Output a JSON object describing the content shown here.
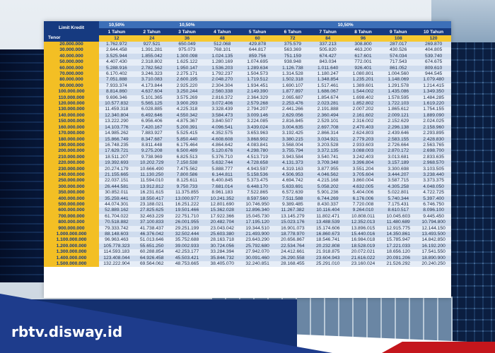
{
  "table": {
    "corner_label": "Limit Kredit",
    "tenor_label": "Tenor",
    "rate_groups": [
      {
        "label": "10,50%",
        "span": 1
      },
      {
        "label": "10,50%",
        "span": 3
      },
      {
        "label": "10,50%",
        "span": 6
      }
    ],
    "year_headers": [
      "1 Tahun",
      "2 Tahun",
      "3 Tahun",
      "4 Tahun",
      "5 Tahun",
      "6 Tahun",
      "7 Tahun",
      "8 Tahun",
      "9 Tahun",
      "10 Tahun"
    ],
    "month_headers": [
      "12",
      "24",
      "36",
      "48",
      "60",
      "72",
      "84",
      "96",
      "108",
      "120"
    ],
    "rows": [
      {
        "amount": "20.000.000",
        "values": [
          "1.762.972",
          "927.521",
          "650.049",
          "512.068",
          "429.878",
          "375.579",
          "337.213",
          "308.800",
          "287.017",
          "269.870"
        ]
      },
      {
        "amount": "30.000.000",
        "values": [
          "2.644.458",
          "1.391.281",
          "975.073",
          "768.101",
          "644.817",
          "563.369",
          "505.820",
          "463.200",
          "430.526",
          "404.805"
        ]
      },
      {
        "amount": "40.000.000",
        "values": [
          "3.525.944",
          "1.855.042",
          "1.300.098",
          "1.024.135",
          "859.756",
          "751.159",
          "674.427",
          "617.601",
          "574.034",
          "539.740"
        ]
      },
      {
        "amount": "50.000.000",
        "values": [
          "4.407.430",
          "2.318.802",
          "1.625.122",
          "1.280.169",
          "1.074.695",
          "938.948",
          "843.034",
          "772.001",
          "717.543",
          "674.675"
        ]
      },
      {
        "amount": "60.000.000",
        "values": [
          "5.288.916",
          "2.782.562",
          "1.950.147",
          "1.536.203",
          "1.289.634",
          "1.126.738",
          "1.011.640",
          "926.401",
          "861.052",
          "809.610"
        ]
      },
      {
        "amount": "70.000.000",
        "values": [
          "6.170.402",
          "3.246.323",
          "2.275.171",
          "1.792.237",
          "1.504.573",
          "1.314.528",
          "1.180.247",
          "1.080.801",
          "1.004.560",
          "944.545"
        ]
      },
      {
        "amount": "80.000.000",
        "values": [
          "7.051.888",
          "3.710.083",
          "2.600.195",
          "2.048.270",
          "1.719.512",
          "1.502.318",
          "1.348.854",
          "1.235.201",
          "1.148.069",
          "1.079.480"
        ]
      },
      {
        "amount": "90.000.000",
        "values": [
          "7.933.374",
          "4.173.844",
          "2.925.220",
          "2.304.304",
          "1.934.451",
          "1.690.107",
          "1.517.461",
          "1.389.601",
          "1.291.578",
          "1.214.415"
        ]
      },
      {
        "amount": "100.000.000",
        "values": [
          "8.814.860",
          "4.637.604",
          "3.250.244",
          "2.560.338",
          "2.149.390",
          "1.877.897",
          "1.686.067",
          "1.544.002",
          "1.435.086",
          "1.349.350"
        ]
      },
      {
        "amount": "110.000.000",
        "values": [
          "9.696.346",
          "5.101.365",
          "3.575.269",
          "2.816.372",
          "2.364.329",
          "2.065.687",
          "1.854.674",
          "1.698.402",
          "1.578.595",
          "1.484.285"
        ]
      },
      {
        "amount": "120.000.000",
        "values": [
          "10.577.832",
          "5.565.125",
          "3.900.293",
          "3.072.406",
          "2.579.268",
          "2.253.476",
          "2.023.281",
          "1.852.802",
          "1.722.103",
          "1.619.220"
        ]
      },
      {
        "amount": "130.000.000",
        "values": [
          "11.459.318",
          "6.028.885",
          "4.225.318",
          "3.328.439",
          "2.794.207",
          "2.441.266",
          "2.191.888",
          "2.007.202",
          "1.865.612",
          "1.754.155"
        ]
      },
      {
        "amount": "140.000.000",
        "values": [
          "12.340.804",
          "6.492.646",
          "4.550.342",
          "3.584.473",
          "3.009.146",
          "2.629.056",
          "2.360.494",
          "2.161.602",
          "2.009.121",
          "1.889.090"
        ]
      },
      {
        "amount": "150.000.000",
        "values": [
          "13.222.290",
          "6.956.406",
          "4.875.367",
          "3.840.507",
          "3.224.085",
          "2.816.845",
          "2.529.101",
          "2.316.002",
          "2.152.629",
          "2.024.025"
        ]
      },
      {
        "amount": "160.000.000",
        "values": [
          "14.103.776",
          "7.420.167",
          "5.200.391",
          "4.096.541",
          "3.439.024",
          "3.004.635",
          "2.697.708",
          "2.470.403",
          "2.296.138",
          "2.158.960"
        ]
      },
      {
        "amount": "170.000.000",
        "values": [
          "14.985.262",
          "7.883.927",
          "5.525.415",
          "4.352.575",
          "3.653.963",
          "3.192.425",
          "2.866.314",
          "2.624.803",
          "2.439.646",
          "2.293.895"
        ]
      },
      {
        "amount": "180.000.000",
        "values": [
          "15.866.749",
          "8.347.687",
          "5.850.440",
          "4.608.608",
          "3.868.902",
          "3.380.215",
          "3.034.921",
          "2.779.203",
          "2.583.155",
          "2.428.830"
        ]
      },
      {
        "amount": "190.000.000",
        "values": [
          "16.748.235",
          "8.811.448",
          "6.175.464",
          "4.864.642",
          "4.083.841",
          "3.568.004",
          "3.203.528",
          "2.933.603",
          "2.726.664",
          "2.563.765"
        ]
      },
      {
        "amount": "200.000.000",
        "values": [
          "17.629.721",
          "9.275.208",
          "6.500.489",
          "5.120.676",
          "4.298.780",
          "3.755.794",
          "3.372.135",
          "3.088.003",
          "2.870.172",
          "2.698.700"
        ]
      },
      {
        "amount": "210.000.000",
        "values": [
          "18.511.207",
          "9.738.969",
          "6.825.513",
          "5.376.710",
          "4.513.719",
          "3.943.584",
          "3.540.741",
          "3.242.403",
          "3.013.681",
          "2.833.635"
        ]
      },
      {
        "amount": "220.000.000",
        "values": [
          "19.392.693",
          "10.202.729",
          "7.150.538",
          "5.632.744",
          "4.728.658",
          "4.131.373",
          "3.709.348",
          "3.396.804",
          "3.157.189",
          "2.968.570"
        ]
      },
      {
        "amount": "230.000.000",
        "values": [
          "20.274.179",
          "10.666.490",
          "7.475.562",
          "5.888.777",
          "4.943.597",
          "4.319.163",
          "3.877.955",
          "3.551.204",
          "3.300.698",
          "3.103.505"
        ]
      },
      {
        "amount": "240.000.000",
        "values": [
          "21.155.665",
          "11.130.250",
          "7.800.586",
          "6.144.811",
          "5.158.536",
          "4.506.953",
          "4.046.562",
          "3.705.604",
          "3.444.207",
          "3.238.440"
        ]
      },
      {
        "amount": "250.000.000",
        "values": [
          "22.037.151",
          "11.594.010",
          "8.125.611",
          "6.400.845",
          "5.373.475",
          "4.694.742",
          "4.215.168",
          "3.860.004",
          "3.587.715",
          "3.373.375"
        ]
      },
      {
        "amount": "300.000.000",
        "values": [
          "26.444.581",
          "13.912.812",
          "9.750.733",
          "7.681.014",
          "6.448.170",
          "5.633.691",
          "5.058.202",
          "4.632.005",
          "4.305.258",
          "4.048.050"
        ]
      },
      {
        "amount": "350.000.000",
        "values": [
          "30.852.011",
          "16.231.615",
          "11.375.855",
          "8.961.183",
          "7.522.865",
          "6.572.639",
          "5.901.236",
          "5.404.006",
          "5.022.801",
          "4.722.725"
        ]
      },
      {
        "amount": "400.000.000",
        "values": [
          "35.259.441",
          "18.550.417",
          "13.000.977",
          "10.241.352",
          "8.597.560",
          "7.511.588",
          "6.744.269",
          "6.176.006",
          "5.740.344",
          "5.397.400"
        ]
      },
      {
        "amount": "500.000.000",
        "values": [
          "44.074.301",
          "23.188.021",
          "16.251.222",
          "12.801.690",
          "10.746.950",
          "9.389.485",
          "8.430.337",
          "7.720.008",
          "7.175.431",
          "6.746.750"
        ]
      },
      {
        "amount": "600.000.000",
        "values": [
          "52.889.162",
          "27.825.625",
          "19.501.466",
          "15.362.028",
          "12.896.340",
          "11.267.382",
          "10.116.404",
          "9.264.010",
          "8.610.517",
          "8.096.100"
        ]
      },
      {
        "amount": "700.000.000",
        "values": [
          "61.704.022",
          "32.463.229",
          "22.751.710",
          "17.922.366",
          "15.045.730",
          "13.145.279",
          "11.802.471",
          "10.808.011",
          "10.045.603",
          "9.445.450"
        ]
      },
      {
        "amount": "800.000.000",
        "values": [
          "70.518.882",
          "37.100.833",
          "26.001.955",
          "20.482.704",
          "17.195.120",
          "15.023.176",
          "13.488.539",
          "12.352.013",
          "11.480.689",
          "10.794.800"
        ]
      },
      {
        "amount": "900.000.000",
        "values": [
          "79.333.742",
          "41.738.437",
          "29.251.199",
          "23.043.042",
          "19.344.510",
          "16.901.073",
          "15.174.606",
          "13.896.015",
          "12.915.775",
          "12.144.150"
        ]
      },
      {
        "amount": "1.000.000.000",
        "values": [
          "88.148.603",
          "46.376.042",
          "32.502.444",
          "25.603.380",
          "21.493.900",
          "18.778.970",
          "16.860.673",
          "15.440.016",
          "14.350.861",
          "13.493.500"
        ]
      },
      {
        "amount": "1.100.000.000",
        "values": [
          "96.963.463",
          "51.013.646",
          "35.752.688",
          "28.163.718",
          "23.643.290",
          "20.656.867",
          "18.546.741",
          "16.984.018",
          "15.785.947",
          "14.842.850"
        ]
      },
      {
        "amount": "1.200.000.000",
        "values": [
          "105.778.323",
          "55.651.250",
          "39.002.933",
          "30.724.056",
          "25.792.680",
          "22.534.764",
          "20.232.808",
          "18.528.019",
          "17.221.033",
          "16.192.200"
        ]
      },
      {
        "amount": "1.300.000.000",
        "values": [
          "114.593.183",
          "60.288.854",
          "42.253.177",
          "33.284.394",
          "27.942.070",
          "24.412.661",
          "21.918.875",
          "20.072.021",
          "18.656.120",
          "17.541.550"
        ]
      },
      {
        "amount": "1.400.000.000",
        "values": [
          "123.408.044",
          "64.926.458",
          "45.503.421",
          "35.844.732",
          "30.091.460",
          "26.290.558",
          "23.604.943",
          "21.616.022",
          "20.091.206",
          "18.890.900"
        ]
      },
      {
        "amount": "1.500.000.000",
        "values": [
          "132.222.904",
          "69.564.062",
          "48.753.665",
          "38.405.070",
          "32.240.851",
          "28.168.455",
          "25.291.010",
          "23.160.024",
          "21.526.292",
          "20.240.250"
        ]
      }
    ]
  },
  "brand": {
    "name": "rbtv.disway.id"
  },
  "colors": {
    "header_navy": "#163a80",
    "header_blue": "#3c6fb8",
    "amount_gold": "#f3bf24",
    "row_blue": "#cfdcee",
    "row_light": "#e6edf7",
    "banner_blue": "#1e3c8c",
    "brand_red": "#c4161c"
  }
}
